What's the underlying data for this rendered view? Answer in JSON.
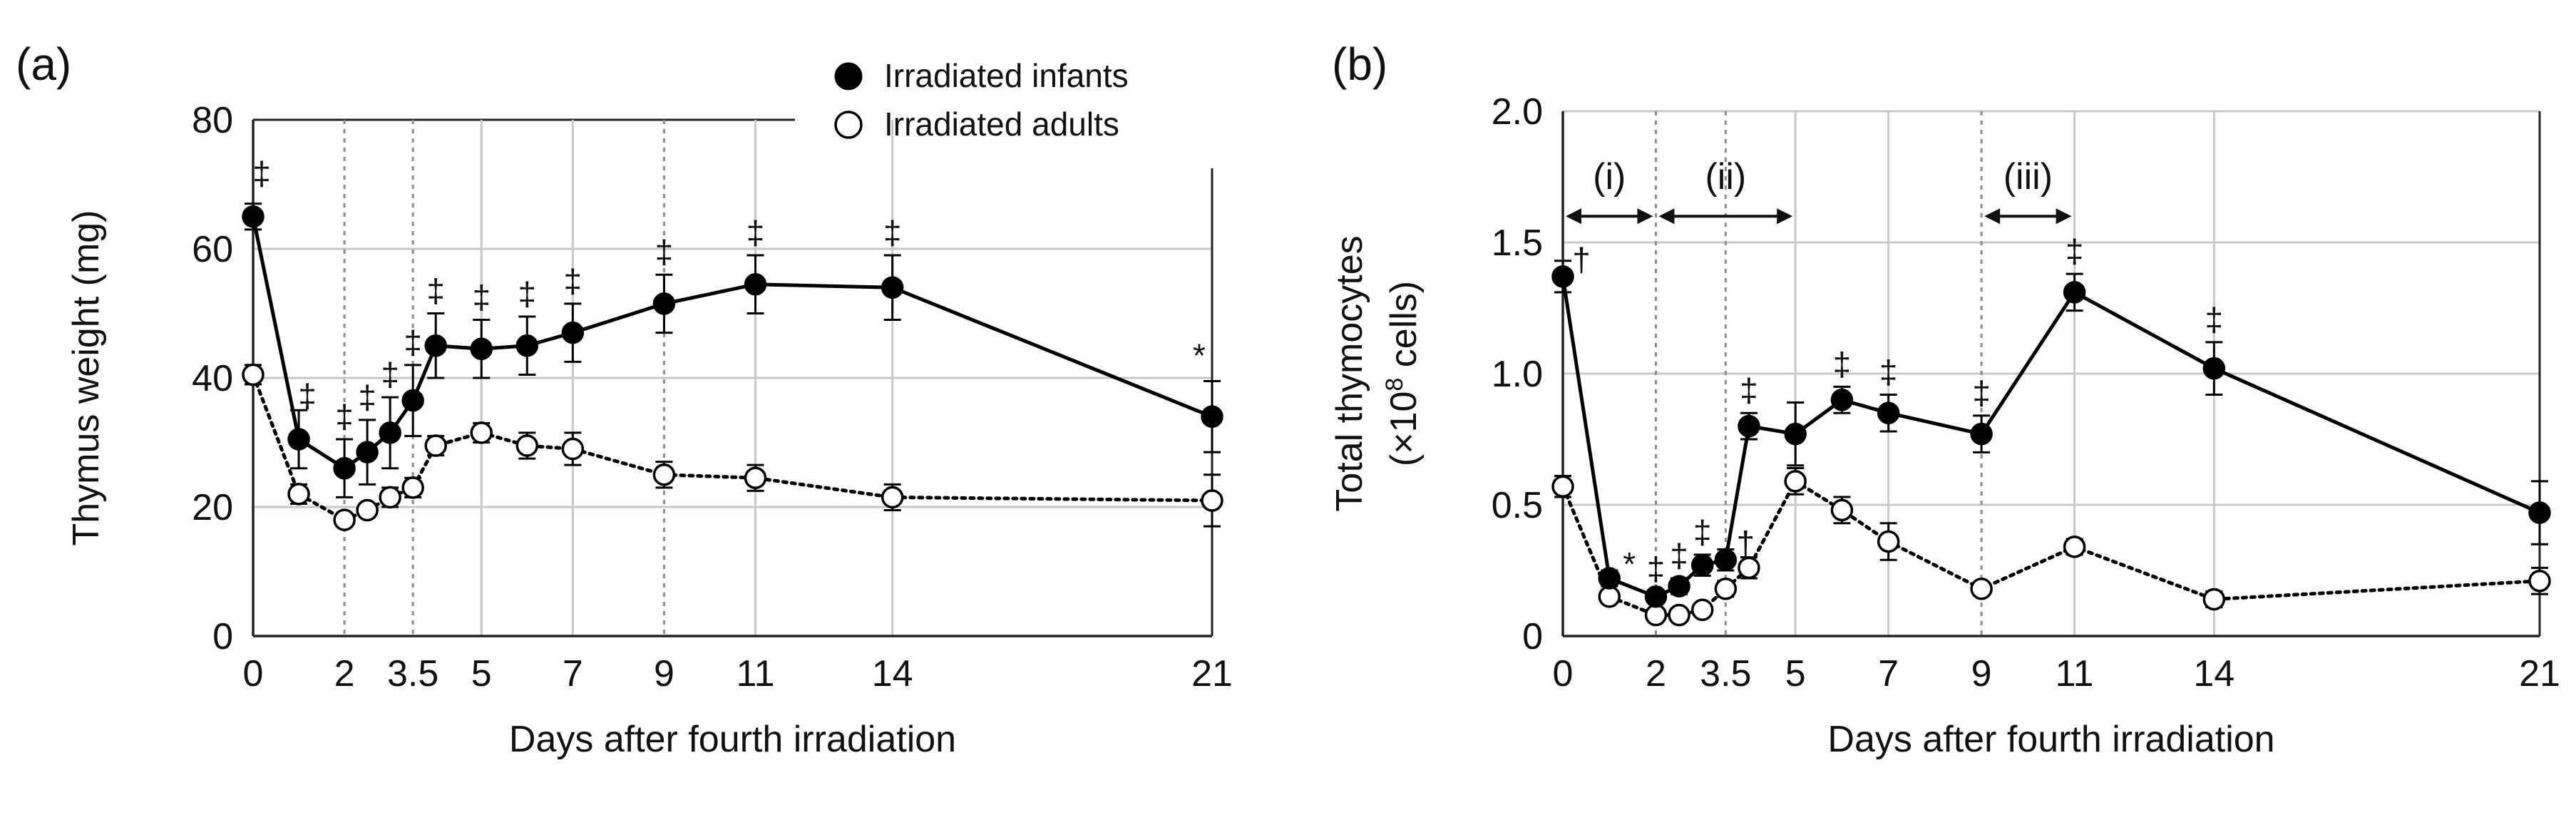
{
  "figure": {
    "panels": [
      "(a)",
      "(b)"
    ]
  },
  "colors": {
    "infants": "#000000",
    "adults": "#ffffff",
    "grid": "#c8c8c8",
    "dotted_grid": "#8c8c8c"
  },
  "legend": {
    "infants": "Irradiated infants",
    "adults": "Irradiated adults",
    "placement": "top-center of panel (a)"
  },
  "chart_data": [
    {
      "type": "line",
      "panel": "(a)",
      "title": "",
      "xlabel": "Days after fourth irradiation",
      "ylabel": "Thymus weight (mg)",
      "ylim": [
        0,
        80
      ],
      "xlim": [
        0,
        21
      ],
      "xticks": [
        0,
        2,
        3.5,
        5,
        7,
        9,
        11,
        14,
        21
      ],
      "xtick_labels": [
        "0",
        "2",
        "3.5",
        "5",
        "7",
        "9",
        "11",
        "14",
        "21"
      ],
      "yticks": [
        0,
        20,
        40,
        60,
        80
      ],
      "ytick_labels": [
        "0",
        "20",
        "40",
        "60",
        "80"
      ],
      "solid_vlines": [
        5,
        7,
        11,
        14,
        21
      ],
      "dotted_vlines": [
        2,
        3.5,
        9
      ],
      "series": [
        {
          "name": "Irradiated infants",
          "marker": "filled",
          "linestyle": "solid",
          "x": [
            0,
            1,
            2,
            2.5,
            3,
            3.5,
            4,
            5,
            6,
            7,
            9,
            11,
            14,
            21
          ],
          "values": [
            65,
            30.5,
            26,
            28.5,
            31.5,
            36.5,
            45,
            44.5,
            45,
            47,
            51.5,
            54.5,
            54,
            34
          ],
          "errors": [
            2,
            4.5,
            4.5,
            5,
            5.5,
            5.5,
            5,
            4.5,
            4.5,
            4.5,
            4.5,
            4.5,
            5,
            5.5
          ],
          "marks": [
            "‡",
            "‡",
            "‡",
            "‡",
            "‡",
            "‡",
            "‡",
            "‡",
            "‡",
            "‡",
            "‡",
            "‡",
            "‡",
            "*"
          ]
        },
        {
          "name": "Irradiated adults",
          "marker": "open",
          "linestyle": "dotted",
          "x": [
            0,
            1,
            2,
            2.5,
            3,
            3.5,
            4,
            5,
            6,
            7,
            9,
            11,
            14,
            21
          ],
          "values": [
            40.5,
            22,
            18,
            19.5,
            21.5,
            23,
            29.5,
            31.5,
            29.5,
            29,
            25,
            24.5,
            21.5,
            21
          ],
          "errors": [
            1.5,
            1.5,
            1,
            1,
            1.5,
            1.5,
            1.5,
            1.5,
            2,
            2.5,
            2,
            2,
            2,
            4
          ]
        }
      ]
    },
    {
      "type": "line",
      "panel": "(b)",
      "title": "",
      "xlabel": "Days after fourth irradiation",
      "ylabel_line1": "Total thymocytes",
      "ylabel_line2_prefix": "(×10",
      "ylabel_line2_exp": "8",
      "ylabel_line2_suffix": " cells)",
      "ylim": [
        0,
        2.0
      ],
      "xlim": [
        0,
        21
      ],
      "xticks": [
        0,
        2,
        3.5,
        5,
        7,
        9,
        11,
        14,
        21
      ],
      "xtick_labels": [
        "0",
        "2",
        "3.5",
        "5",
        "7",
        "9",
        "11",
        "14",
        "21"
      ],
      "yticks": [
        0,
        0.5,
        1.0,
        1.5,
        2.0
      ],
      "ytick_labels": [
        "0",
        "0.5",
        "1.0",
        "1.5",
        "2.0"
      ],
      "solid_vlines": [
        5,
        7,
        11,
        14,
        21
      ],
      "dotted_vlines": [
        2,
        3.5,
        9
      ],
      "intervals": [
        {
          "label": "(i)",
          "from": 0,
          "to": 2
        },
        {
          "label": "(ii)",
          "from": 2,
          "to": 5
        },
        {
          "label": "(iii)",
          "from": 9,
          "to": 11
        }
      ],
      "interval_y": 1.6,
      "series": [
        {
          "name": "Irradiated infants",
          "marker": "filled",
          "linestyle": "solid",
          "x": [
            0,
            1,
            2,
            2.5,
            3,
            3.5,
            4,
            5,
            6,
            7,
            9,
            11,
            14,
            21
          ],
          "values": [
            1.37,
            0.22,
            0.15,
            0.19,
            0.27,
            0.29,
            0.8,
            0.77,
            0.9,
            0.85,
            0.77,
            1.31,
            1.02,
            0.47
          ],
          "errors": [
            0.06,
            0.03,
            0.02,
            0.03,
            0.04,
            0.04,
            0.05,
            0.12,
            0.05,
            0.07,
            0.07,
            0.07,
            0.1,
            0.12
          ],
          "marks": [
            "†",
            "*",
            "‡",
            "‡",
            "‡",
            "†",
            "‡",
            "",
            "‡",
            "‡",
            "‡",
            "‡",
            "‡",
            ""
          ]
        },
        {
          "name": "Irradiated adults",
          "marker": "open",
          "linestyle": "dotted",
          "x": [
            0,
            1,
            2,
            2.5,
            3,
            3.5,
            4,
            5,
            6,
            7,
            9,
            11,
            14,
            21
          ],
          "values": [
            0.57,
            0.15,
            0.08,
            0.08,
            0.1,
            0.18,
            0.26,
            0.59,
            0.48,
            0.36,
            0.18,
            0.34,
            0.14,
            0.21
          ],
          "errors": [
            0.04,
            0.02,
            0.02,
            0.02,
            0.02,
            0.03,
            0.04,
            0.05,
            0.05,
            0.07,
            0.02,
            0.03,
            0.03,
            0.05
          ]
        }
      ]
    }
  ]
}
